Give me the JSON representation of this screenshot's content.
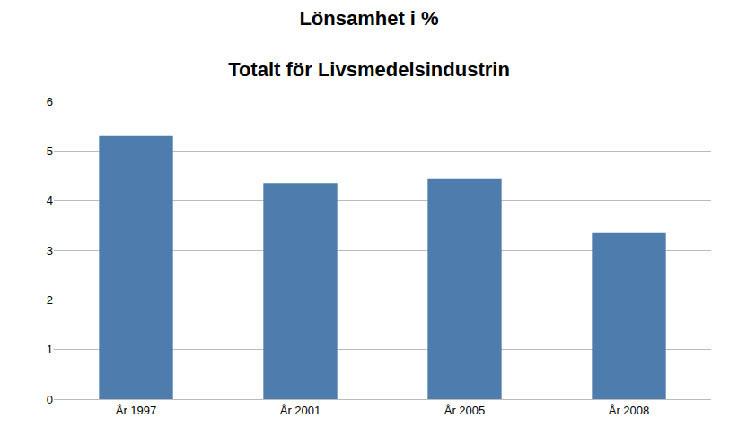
{
  "chart_data": {
    "type": "bar",
    "title": "Lönsamhet i %",
    "subtitle": "Totalt för Livsmedelsindustrin",
    "categories": [
      "År 1997",
      "År 2001",
      "År 2005",
      "År 2008"
    ],
    "values": [
      5.3,
      4.35,
      4.43,
      3.35
    ],
    "color": "#4E7CAD",
    "ylim": [
      0,
      6
    ],
    "yticks": [
      0,
      1,
      2,
      3,
      4,
      5,
      6
    ],
    "grid": true
  }
}
